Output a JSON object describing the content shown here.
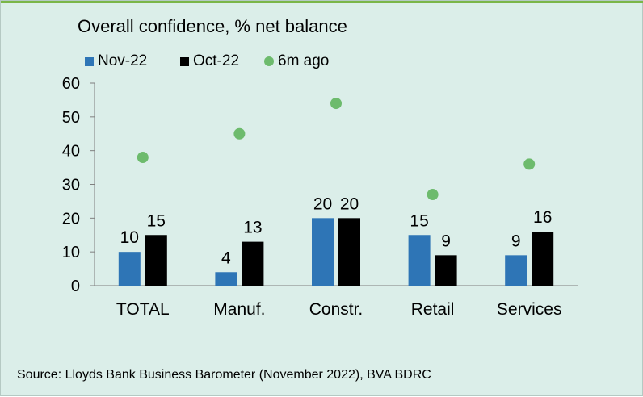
{
  "chart_data": {
    "type": "bar",
    "title": "Overall confidence, % net balance",
    "categories": [
      "TOTAL",
      "Manuf.",
      "Constr.",
      "Retail",
      "Services"
    ],
    "series": [
      {
        "name": "Nov-22",
        "type": "bar",
        "color": "#2e75b6",
        "values": [
          10,
          4,
          20,
          15,
          9
        ]
      },
      {
        "name": "Oct-22",
        "type": "bar",
        "color": "#000000",
        "values": [
          15,
          13,
          20,
          9,
          16
        ]
      },
      {
        "name": "6m ago",
        "type": "scatter",
        "color": "#6dbb6d",
        "values": [
          38,
          45,
          54,
          27,
          36
        ]
      }
    ],
    "data_labels": [
      [
        "10",
        "4",
        "20",
        "15",
        "9"
      ],
      [
        "15",
        "13",
        "20",
        "9",
        "16"
      ]
    ],
    "yticks": [
      "0",
      "10",
      "20",
      "30",
      "40",
      "50",
      "60"
    ],
    "ylim": [
      0,
      60
    ],
    "xlabel": "",
    "ylabel": "",
    "grid": false,
    "legend_position": "top-left"
  },
  "source": "Source: Lloyds Bank Business Barometer (November 2022), BVA BDRC"
}
